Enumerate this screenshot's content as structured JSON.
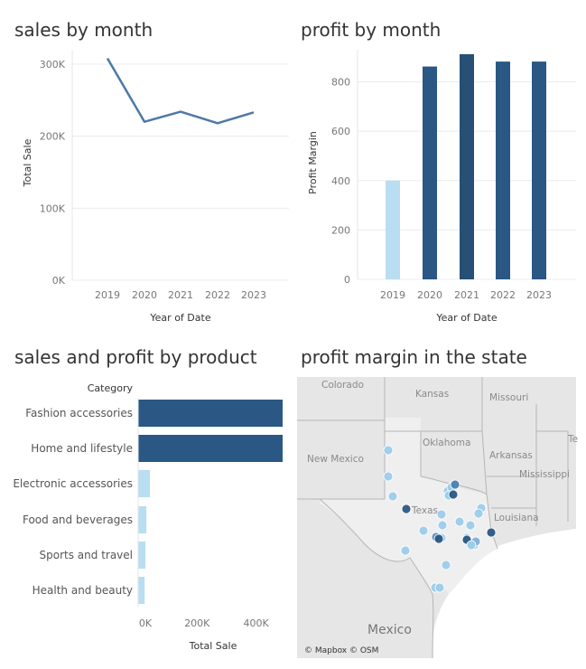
{
  "panels": {
    "sales_title": "sales by month",
    "profit_title": "profit by month",
    "product_title": "sales and profit by product",
    "map_title": "profit margin in the state"
  },
  "chart_data": [
    {
      "type": "line",
      "x": [
        "2019",
        "2020",
        "2021",
        "2022",
        "2023"
      ],
      "series": [
        {
          "values": [
            308000,
            220000,
            234000,
            218000,
            233000
          ]
        }
      ],
      "xlabel": "Year of Date",
      "ylabel": "Total Sale",
      "ylim": [
        0,
        320000
      ],
      "yticks": [
        "300K",
        "200K",
        "100K",
        "0K"
      ],
      "ytick_values": [
        300000,
        200000,
        100000,
        0
      ],
      "color": "#4e79a7",
      "grid": true
    },
    {
      "type": "bar",
      "categories": [
        "2019",
        "2020",
        "2021",
        "2022",
        "2023"
      ],
      "values": [
        400,
        862,
        912,
        882,
        882
      ],
      "xlabel": "Year of Date",
      "ylabel": "Profit Margin",
      "ylim": [
        0,
        930
      ],
      "yticks": [
        "800",
        "600",
        "400",
        "200",
        "0"
      ],
      "ytick_values": [
        800,
        600,
        400,
        200,
        0
      ],
      "colors": [
        "#b9ddf1",
        "#2a5783",
        "#284f75",
        "#2a5783",
        "#2a5783"
      ],
      "grid": true
    },
    {
      "type": "bar",
      "orientation": "horizontal",
      "category_header": "Category",
      "categories": [
        "Fashion accessories",
        "Home and lifestyle",
        "Electronic accessories",
        "Food and beverages",
        "Sports and travel",
        "Health and beauty"
      ],
      "values": [
        500000,
        500000,
        40000,
        28000,
        25000,
        22000
      ],
      "xlabel": "Total Sale",
      "xlim": [
        0,
        490000
      ],
      "xticks": [
        "0K",
        "200K",
        "400K"
      ],
      "xtick_values": [
        0,
        200000,
        400000
      ],
      "colors": [
        "#2a5783",
        "#2a5783",
        "#b9ddf1",
        "#b9ddf1",
        "#b9ddf1",
        "#b9ddf1"
      ]
    }
  ],
  "map": {
    "labels": [
      "Colorado",
      "Kansas",
      "Missouri",
      "Oklahoma",
      "Arkansas",
      "Te",
      "New Mexico",
      "Mississippi",
      "Texas",
      "Louisiana",
      "Mexico"
    ],
    "attribution": "© Mapbox © OSM",
    "dot_colors": {
      "light": "#9ccbe9",
      "dark": "#2a5783"
    }
  }
}
